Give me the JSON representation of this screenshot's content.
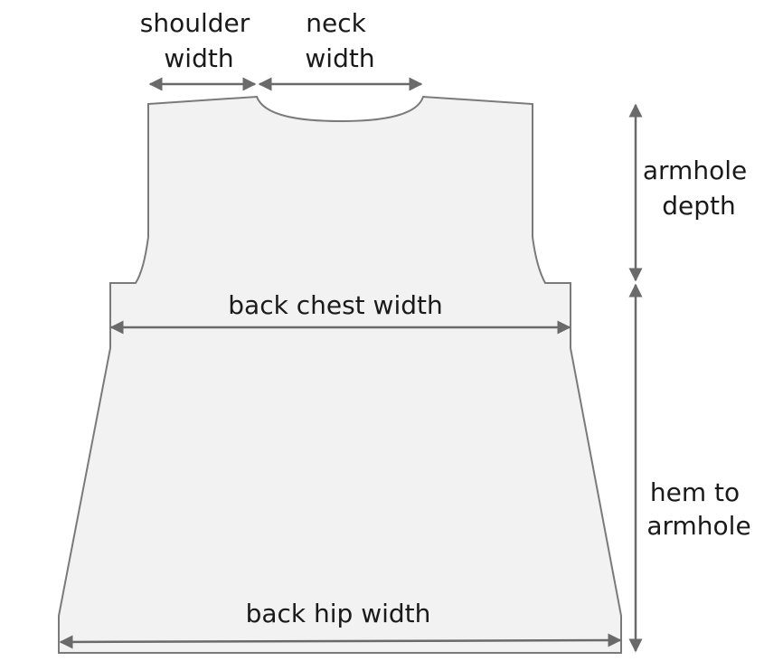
{
  "labels": {
    "shoulder_width": [
      "shoulder",
      "width"
    ],
    "neck_width": [
      "neck",
      "width"
    ],
    "armhole_depth": [
      "armhole",
      "depth"
    ],
    "back_chest_width": "back chest width",
    "hem_to_armhole": [
      "hem to",
      "armhole"
    ],
    "back_hip_width": "back hip width"
  },
  "colors": {
    "garment_fill": "#f2f2f2",
    "outline": "#7a7a7a",
    "arrow": "#6a6a6a",
    "text": "#1a1a1a"
  }
}
